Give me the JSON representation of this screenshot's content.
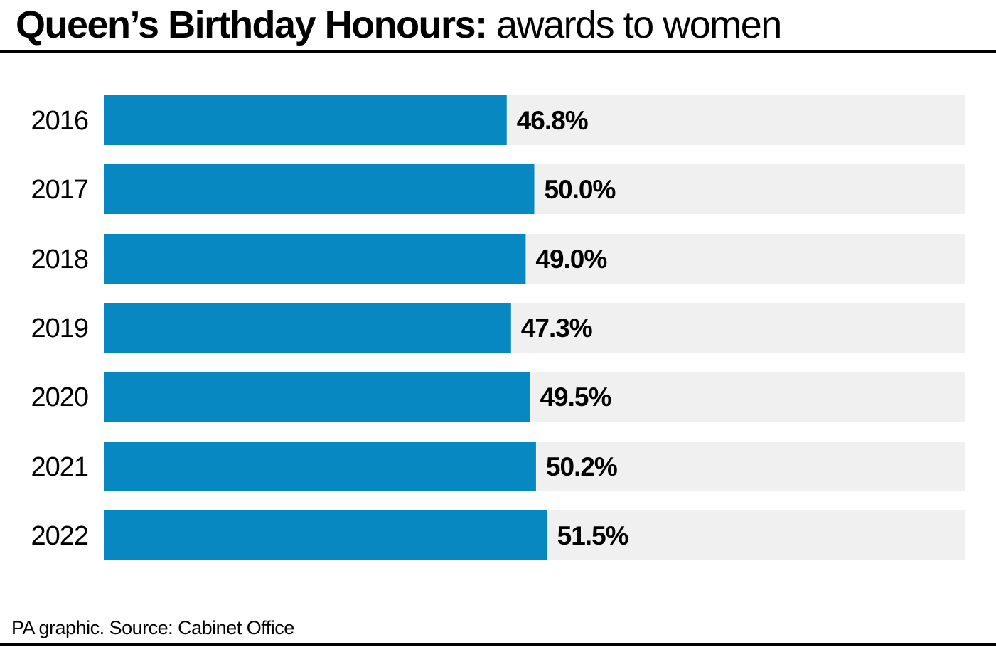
{
  "chart_data": {
    "type": "bar",
    "orientation": "horizontal",
    "title_bold": "Queen’s Birthday Honours:",
    "title_light": "awards to women",
    "categories": [
      "2016",
      "2017",
      "2018",
      "2019",
      "2020",
      "2021",
      "2022"
    ],
    "values": [
      46.8,
      50.0,
      49.0,
      47.3,
      49.5,
      50.2,
      51.5
    ],
    "value_labels": [
      "46.8%",
      "50.0%",
      "49.0%",
      "47.3%",
      "49.5%",
      "50.2%",
      "51.5%"
    ],
    "xlim": [
      0,
      100
    ],
    "unit": "%",
    "grid": false,
    "legend": "none",
    "colors": {
      "bar": "#0788c1",
      "track": "#f0f0f0"
    }
  },
  "source": "PA graphic. Source: Cabinet Office"
}
